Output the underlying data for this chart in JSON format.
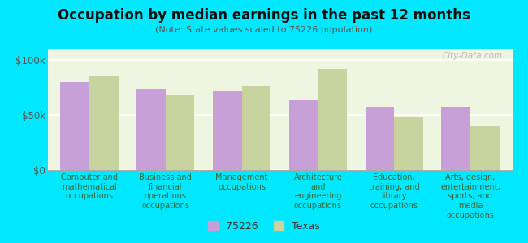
{
  "title": "Occupation by median earnings in the past 12 months",
  "subtitle": "(Note: State values scaled to 75226 population)",
  "categories": [
    "Computer and\nmathematical\noccupations",
    "Business and\nfinancial\noperations\noccupations",
    "Management\noccupations",
    "Architecture\nand\nengineering\noccupations",
    "Education,\ntraining, and\nlibrary\noccupations",
    "Arts, design,\nentertainment,\nsports, and\nmedia\noccupations"
  ],
  "values_75226": [
    80000,
    73000,
    72000,
    63000,
    57000,
    57000
  ],
  "values_texas": [
    85000,
    68000,
    76000,
    92000,
    48000,
    40000
  ],
  "color_75226": "#c8a0d8",
  "color_texas": "#c8d4a0",
  "background_chart": "#eef5e0",
  "background_fig": "#00e8ff",
  "ylim": [
    0,
    110000
  ],
  "ytick_labels": [
    "$0",
    "$50k",
    "$100k"
  ],
  "ytick_values": [
    0,
    50000,
    100000
  ],
  "legend_75226": "75226",
  "legend_texas": "Texas",
  "watermark": "City-Data.com"
}
